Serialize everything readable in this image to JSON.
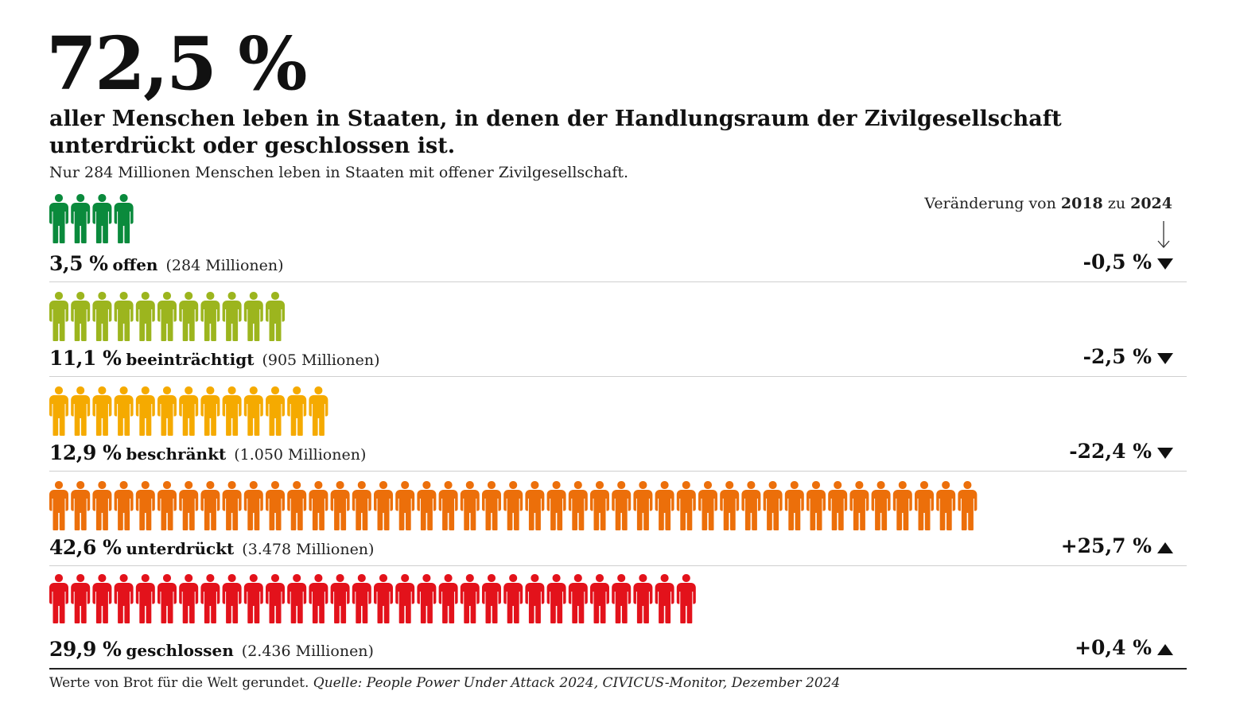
{
  "header": {
    "big_number": "72,5 %",
    "headline": "aller Menschen leben in Staaten, in denen der Handlungsraum der Zivilgesellschaft unterdrückt oder geschlossen ist.",
    "subline": "Nur 284 Millionen Menschen leben in Staaten mit offener Zivilgesellschaft.",
    "change_prefix": "Veränderung von ",
    "change_from": "2018",
    "change_mid": " zu ",
    "change_to": "2024"
  },
  "chart_data": {
    "type": "pictogram",
    "unit": "Millionen",
    "categories": [
      "offen",
      "beeinträchtigt",
      "beschränkt",
      "unterdrückt",
      "geschlossen"
    ],
    "rows": [
      {
        "percent_label": "3,5 %",
        "category": "offen",
        "millions_label": "(284 Millionen)",
        "share": 3.5,
        "millions": 284,
        "icons": 4,
        "color": "#0a8a3c",
        "change_label": "-0,5 %",
        "direction": "down"
      },
      {
        "percent_label": "11,1 %",
        "category": "beeinträchtigt",
        "millions_label": "(905 Millionen)",
        "share": 11.1,
        "millions": 905,
        "icons": 11,
        "color": "#9cb51e",
        "change_label": "-2,5 %",
        "direction": "down"
      },
      {
        "percent_label": "12,9 %",
        "category": "beschränkt",
        "millions_label": "(1.050 Millionen)",
        "share": 12.9,
        "millions": 1050,
        "icons": 13,
        "color": "#f5aa00",
        "change_label": "-22,4 %",
        "direction": "down"
      },
      {
        "percent_label": "42,6 %",
        "category": "unterdrückt",
        "millions_label": "(3.478 Millionen)",
        "share": 42.6,
        "millions": 3478,
        "icons": 43,
        "color": "#ec6f0a",
        "change_label": "+25,7 %",
        "direction": "up"
      },
      {
        "percent_label": "29,9 %",
        "category": "geschlossen",
        "millions_label": "(2.436 Millionen)",
        "share": 29.9,
        "millions": 2436,
        "icons": 30,
        "color": "#e3121b",
        "change_label": "+0,4 %",
        "direction": "up"
      }
    ]
  },
  "footer": {
    "note": "Werte von Brot für die Welt gerundet. ",
    "source": "Quelle: People Power Under Attack 2024, CIVICUS-Monitor, Dezember 2024"
  }
}
